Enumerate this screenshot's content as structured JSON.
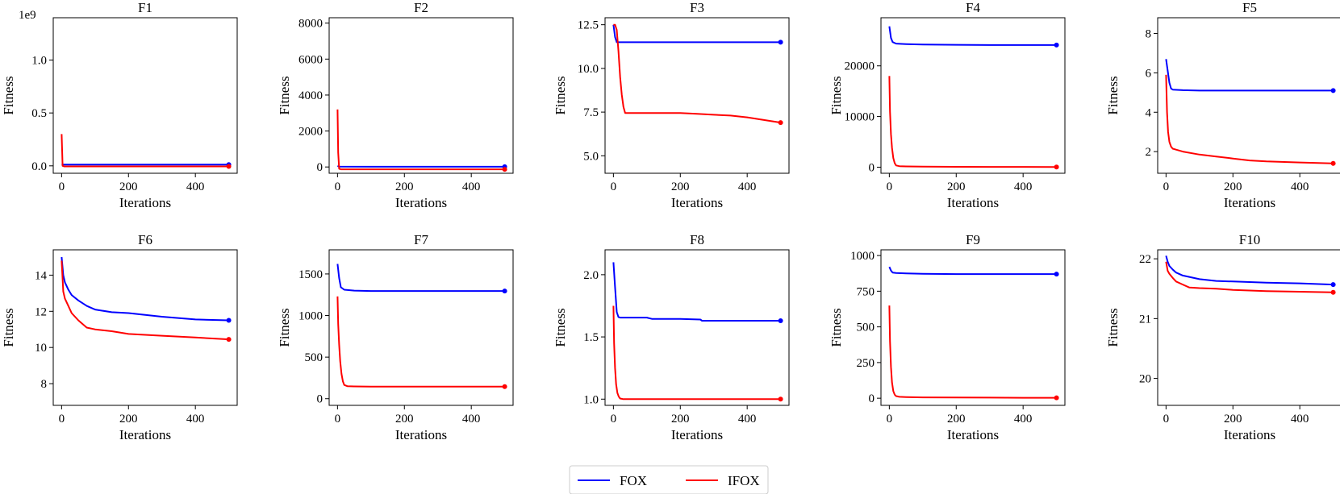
{
  "chart_data": [
    {
      "type": "line",
      "title": "F1",
      "xlabel": "Iterations",
      "ylabel": "Fitness",
      "xlim": [
        -25,
        525
      ],
      "ylim": [
        -0.07,
        1.4
      ],
      "offset_label": "1e9",
      "xticks": [
        0,
        200,
        400
      ],
      "xtick_labels": [
        "0",
        "200",
        "400"
      ],
      "yticks": [
        0.0,
        0.5,
        1.0
      ],
      "ytick_labels": [
        "0.0",
        "0.5",
        "1.0"
      ],
      "series": [
        {
          "name": "FOX",
          "color": "#0000ff",
          "x": [
            0,
            5,
            100,
            200,
            300,
            400,
            500
          ],
          "y": [
            0.012,
            0.012,
            0.012,
            0.012,
            0.012,
            0.012,
            0.012
          ]
        },
        {
          "name": "IFOX",
          "color": "#ff0000",
          "x": [
            0,
            3,
            8,
            20,
            100,
            300,
            500
          ],
          "y": [
            0.3,
            0.0,
            -0.005,
            -0.005,
            -0.005,
            -0.005,
            -0.005
          ]
        }
      ]
    },
    {
      "type": "line",
      "title": "F2",
      "xlabel": "Iterations",
      "ylabel": "Fitness",
      "xlim": [
        -25,
        525
      ],
      "ylim": [
        -350,
        8300
      ],
      "offset_label": "",
      "xticks": [
        0,
        200,
        400
      ],
      "xtick_labels": [
        "0",
        "200",
        "400"
      ],
      "yticks": [
        0,
        2000,
        4000,
        6000,
        8000
      ],
      "ytick_labels": [
        "0",
        "2000",
        "4000",
        "6000",
        "8000"
      ],
      "series": [
        {
          "name": "FOX",
          "color": "#0000ff",
          "x": [
            0,
            5,
            100,
            200,
            300,
            400,
            500
          ],
          "y": [
            60,
            20,
            15,
            15,
            15,
            15,
            15
          ]
        },
        {
          "name": "IFOX",
          "color": "#ff0000",
          "x": [
            0,
            2,
            5,
            10,
            100,
            300,
            500
          ],
          "y": [
            3200,
            800,
            -100,
            -130,
            -130,
            -130,
            -130
          ]
        }
      ]
    },
    {
      "type": "line",
      "title": "F3",
      "xlabel": "Iterations",
      "ylabel": "Fitness",
      "xlim": [
        -25,
        525
      ],
      "ylim": [
        4.0,
        12.9
      ],
      "offset_label": "",
      "xticks": [
        0,
        200,
        400
      ],
      "xtick_labels": [
        "0",
        "200",
        "400"
      ],
      "yticks": [
        5.0,
        7.5,
        10.0,
        12.5
      ],
      "ytick_labels": [
        "5.0",
        "7.5",
        "10.0",
        "12.5"
      ],
      "series": [
        {
          "name": "FOX",
          "color": "#0000ff",
          "x": [
            0,
            5,
            10,
            20,
            100,
            200,
            300,
            400,
            500
          ],
          "y": [
            12.5,
            11.8,
            11.5,
            11.5,
            11.5,
            11.5,
            11.5,
            11.5,
            11.5
          ]
        },
        {
          "name": "IFOX",
          "color": "#ff0000",
          "x": [
            0,
            5,
            10,
            15,
            20,
            25,
            30,
            35,
            50,
            100,
            200,
            250,
            300,
            350,
            400,
            450,
            500
          ],
          "y": [
            12.5,
            12.5,
            12.2,
            11.0,
            9.5,
            8.5,
            7.8,
            7.45,
            7.45,
            7.45,
            7.45,
            7.4,
            7.35,
            7.3,
            7.2,
            7.05,
            6.9
          ]
        }
      ]
    },
    {
      "type": "line",
      "title": "F4",
      "xlabel": "Iterations",
      "ylabel": "Fitness",
      "xlim": [
        -25,
        525
      ],
      "ylim": [
        -1200,
        29500
      ],
      "offset_label": "",
      "xticks": [
        0,
        200,
        400
      ],
      "xtick_labels": [
        "0",
        "200",
        "400"
      ],
      "yticks": [
        0,
        10000,
        20000
      ],
      "ytick_labels": [
        "0",
        "10000",
        "20000"
      ],
      "series": [
        {
          "name": "FOX",
          "color": "#0000ff",
          "x": [
            0,
            5,
            10,
            20,
            50,
            100,
            200,
            300,
            400,
            500
          ],
          "y": [
            27800,
            25500,
            24700,
            24400,
            24300,
            24200,
            24150,
            24100,
            24100,
            24100
          ]
        },
        {
          "name": "IFOX",
          "color": "#ff0000",
          "x": [
            0,
            2,
            5,
            8,
            12,
            16,
            20,
            30,
            50,
            100,
            200,
            300,
            400,
            500
          ],
          "y": [
            18000,
            11000,
            6500,
            3800,
            1800,
            800,
            350,
            200,
            150,
            100,
            80,
            60,
            50,
            40
          ]
        }
      ]
    },
    {
      "type": "line",
      "title": "F5",
      "xlabel": "Iterations",
      "ylabel": "Fitness",
      "xlim": [
        -25,
        525
      ],
      "ylim": [
        0.9,
        8.8
      ],
      "offset_label": "",
      "xticks": [
        0,
        200,
        400
      ],
      "xtick_labels": [
        "0",
        "200",
        "400"
      ],
      "yticks": [
        2,
        4,
        6,
        8
      ],
      "ytick_labels": [
        "2",
        "4",
        "6",
        "8"
      ],
      "series": [
        {
          "name": "FOX",
          "color": "#0000ff",
          "x": [
            0,
            10,
            15,
            20,
            50,
            100,
            200,
            300,
            400,
            500
          ],
          "y": [
            6.7,
            5.5,
            5.2,
            5.15,
            5.12,
            5.1,
            5.1,
            5.1,
            5.1,
            5.1
          ]
        },
        {
          "name": "IFOX",
          "color": "#ff0000",
          "x": [
            0,
            3,
            6,
            10,
            15,
            20,
            30,
            50,
            100,
            150,
            200,
            250,
            300,
            400,
            500
          ],
          "y": [
            5.9,
            4.0,
            3.0,
            2.5,
            2.25,
            2.15,
            2.1,
            2.0,
            1.85,
            1.75,
            1.65,
            1.55,
            1.5,
            1.45,
            1.4
          ]
        }
      ]
    },
    {
      "type": "line",
      "title": "F6",
      "xlabel": "Iterations",
      "ylabel": "Fitness",
      "xlim": [
        -25,
        525
      ],
      "ylim": [
        6.8,
        15.4
      ],
      "offset_label": "",
      "xticks": [
        0,
        200,
        400
      ],
      "xtick_labels": [
        "0",
        "200",
        "400"
      ],
      "yticks": [
        8,
        10,
        12,
        14
      ],
      "ytick_labels": [
        "8",
        "10",
        "12",
        "14"
      ],
      "series": [
        {
          "name": "FOX",
          "color": "#0000ff",
          "x": [
            0,
            5,
            10,
            20,
            30,
            50,
            75,
            100,
            150,
            200,
            300,
            400,
            500
          ],
          "y": [
            15.0,
            14.0,
            13.6,
            13.2,
            12.9,
            12.6,
            12.3,
            12.1,
            11.95,
            11.9,
            11.7,
            11.55,
            11.5
          ]
        },
        {
          "name": "IFOX",
          "color": "#ff0000",
          "x": [
            0,
            5,
            10,
            20,
            30,
            50,
            75,
            100,
            150,
            200,
            300,
            400,
            500
          ],
          "y": [
            14.8,
            13.1,
            12.7,
            12.3,
            11.9,
            11.5,
            11.1,
            11.0,
            10.9,
            10.75,
            10.65,
            10.55,
            10.45
          ]
        }
      ]
    },
    {
      "type": "line",
      "title": "F7",
      "xlabel": "Iterations",
      "ylabel": "Fitness",
      "xlim": [
        -25,
        525
      ],
      "ylim": [
        -80,
        1790
      ],
      "offset_label": "",
      "xticks": [
        0,
        200,
        400
      ],
      "xtick_labels": [
        "0",
        "200",
        "400"
      ],
      "yticks": [
        0,
        500,
        1000,
        1500
      ],
      "ytick_labels": [
        "0",
        "500",
        "1000",
        "1500"
      ],
      "series": [
        {
          "name": "FOX",
          "color": "#0000ff",
          "x": [
            0,
            5,
            10,
            20,
            50,
            100,
            200,
            300,
            400,
            500
          ],
          "y": [
            1620,
            1450,
            1340,
            1310,
            1300,
            1295,
            1295,
            1295,
            1295,
            1295
          ]
        },
        {
          "name": "IFOX",
          "color": "#ff0000",
          "x": [
            0,
            2,
            5,
            8,
            12,
            16,
            20,
            30,
            50,
            100,
            200,
            300,
            400,
            500
          ],
          "y": [
            1230,
            900,
            650,
            450,
            300,
            210,
            165,
            150,
            148,
            145,
            145,
            145,
            145,
            145
          ]
        }
      ]
    },
    {
      "type": "line",
      "title": "F8",
      "xlabel": "Iterations",
      "ylabel": "Fitness",
      "xlim": [
        -25,
        525
      ],
      "ylim": [
        0.95,
        2.2
      ],
      "offset_label": "",
      "xticks": [
        0,
        200,
        400
      ],
      "xtick_labels": [
        "0",
        "200",
        "400"
      ],
      "yticks": [
        1.0,
        1.5,
        2.0
      ],
      "ytick_labels": [
        "1.0",
        "1.5",
        "2.0"
      ],
      "series": [
        {
          "name": "FOX",
          "color": "#0000ff",
          "x": [
            0,
            5,
            10,
            15,
            20,
            100,
            115,
            200,
            260,
            265,
            400,
            500
          ],
          "y": [
            2.1,
            1.9,
            1.7,
            1.66,
            1.655,
            1.655,
            1.645,
            1.645,
            1.64,
            1.63,
            1.63,
            1.63
          ]
        },
        {
          "name": "IFOX",
          "color": "#ff0000",
          "x": [
            0,
            2,
            5,
            8,
            12,
            16,
            20,
            30,
            50,
            100,
            200,
            300,
            400,
            500
          ],
          "y": [
            1.75,
            1.45,
            1.25,
            1.12,
            1.05,
            1.02,
            1.005,
            1.0,
            1.0,
            1.0,
            1.0,
            1.0,
            1.0,
            1.0
          ]
        }
      ]
    },
    {
      "type": "line",
      "title": "F9",
      "xlabel": "Iterations",
      "ylabel": "Fitness",
      "xlim": [
        -25,
        525
      ],
      "ylim": [
        -50,
        1040
      ],
      "offset_label": "",
      "xticks": [
        0,
        200,
        400
      ],
      "xtick_labels": [
        "0",
        "200",
        "400"
      ],
      "yticks": [
        0,
        250,
        500,
        750,
        1000
      ],
      "ytick_labels": [
        "0",
        "250",
        "500",
        "750",
        "1000"
      ],
      "series": [
        {
          "name": "FOX",
          "color": "#0000ff",
          "x": [
            0,
            5,
            10,
            20,
            50,
            100,
            200,
            300,
            400,
            500
          ],
          "y": [
            920,
            895,
            880,
            878,
            875,
            872,
            870,
            870,
            870,
            870
          ]
        },
        {
          "name": "IFOX",
          "color": "#ff0000",
          "x": [
            0,
            2,
            5,
            8,
            12,
            16,
            20,
            30,
            50,
            100,
            200,
            300,
            400,
            500
          ],
          "y": [
            650,
            400,
            220,
            110,
            50,
            25,
            15,
            10,
            8,
            6,
            5,
            4,
            3,
            3
          ]
        }
      ]
    },
    {
      "type": "line",
      "title": "F10",
      "xlabel": "Iterations",
      "ylabel": "Fitness",
      "xlim": [
        -25,
        525
      ],
      "ylim": [
        19.55,
        22.15
      ],
      "offset_label": "",
      "xticks": [
        0,
        200,
        400
      ],
      "xtick_labels": [
        "0",
        "200",
        "400"
      ],
      "yticks": [
        20,
        21,
        22
      ],
      "ytick_labels": [
        "20",
        "21",
        "22"
      ],
      "series": [
        {
          "name": "FOX",
          "color": "#0000ff",
          "x": [
            0,
            5,
            10,
            20,
            30,
            50,
            100,
            150,
            200,
            300,
            400,
            500
          ],
          "y": [
            22.05,
            21.95,
            21.88,
            21.82,
            21.77,
            21.72,
            21.66,
            21.63,
            21.62,
            21.6,
            21.59,
            21.57
          ]
        },
        {
          "name": "IFOX",
          "color": "#ff0000",
          "x": [
            0,
            5,
            10,
            20,
            30,
            50,
            70,
            100,
            150,
            200,
            300,
            400,
            500
          ],
          "y": [
            21.95,
            21.8,
            21.75,
            21.68,
            21.62,
            21.57,
            21.52,
            21.51,
            21.5,
            21.48,
            21.46,
            21.45,
            21.44
          ]
        }
      ]
    }
  ],
  "legend": {
    "placement": "bottom-center",
    "entries": [
      {
        "label": "FOX",
        "color": "#0000ff"
      },
      {
        "label": "IFOX",
        "color": "#ff0000"
      }
    ]
  }
}
